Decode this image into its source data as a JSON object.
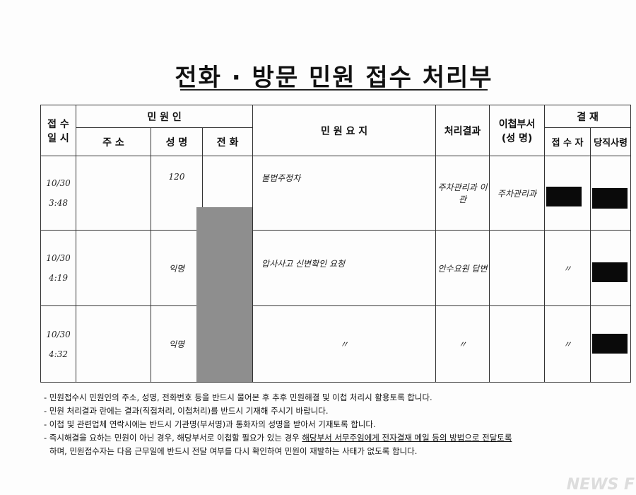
{
  "title": "전화 · 방문 민원 접수 처리부",
  "headers": {
    "received_time": "접 수\n일 시",
    "complainant": "민 원 인",
    "address": "주 소",
    "name": "성 명",
    "phone": "전 화",
    "summary": "민 원 요 지",
    "result": "처리결과",
    "transfer_dept": "이첩부서\n(성 명)",
    "approval": "결 재",
    "receiver": "접 수 자",
    "duty_officer": "당직사령"
  },
  "rows": [
    {
      "date": "10/30",
      "time": "3:48",
      "address": "",
      "name": "120",
      "phone": "",
      "summary": "불법주정차",
      "result": "주차관리과 이관",
      "transfer_dept": "주차관리과",
      "receiver": "",
      "duty_officer": ""
    },
    {
      "date": "10/30",
      "time": "4:19",
      "address": "",
      "name": "익명",
      "phone": "",
      "summary": "압사사고 신변확인 요청",
      "result": "안수요원 답변",
      "transfer_dept": "",
      "receiver": "〃",
      "duty_officer": ""
    },
    {
      "date": "10/30",
      "time": "4:32",
      "address": "",
      "name": "익명",
      "phone": "",
      "summary": "〃",
      "result": "〃",
      "transfer_dept": "",
      "receiver": "〃",
      "duty_officer": ""
    }
  ],
  "notes": [
    "- 민원접수시 민원인의 주소, 성명, 전화번호 등을 반드시 물어본 후 추후 민원해결 및 이첩 처리시 활용토록 합니다.",
    "- 민원 처리결과 란에는 결과(직접처리, 이첩처리)를 반드시 기재해 주시기 바랍니다.",
    "- 이첩 및 관련업체 연락시에는 반드시 기관명(부서명)과 통화자의 성명을 받아서 기재토록 합니다.",
    "- 즉시해결을 요하는 민원이 아닌 경우, 해당부서로 이첩할 필요가 있는 경우 ",
    "해당부서 서무주임에게 전자결재 메일 등의 방법으로 전달토록",
    "하며, 민원접수자는 다음 근무일에 반드시 전달 여부를 다시 확인하여 민원이 재발하는 사태가 없도록 합니다."
  ],
  "watermark": "NEWS F"
}
